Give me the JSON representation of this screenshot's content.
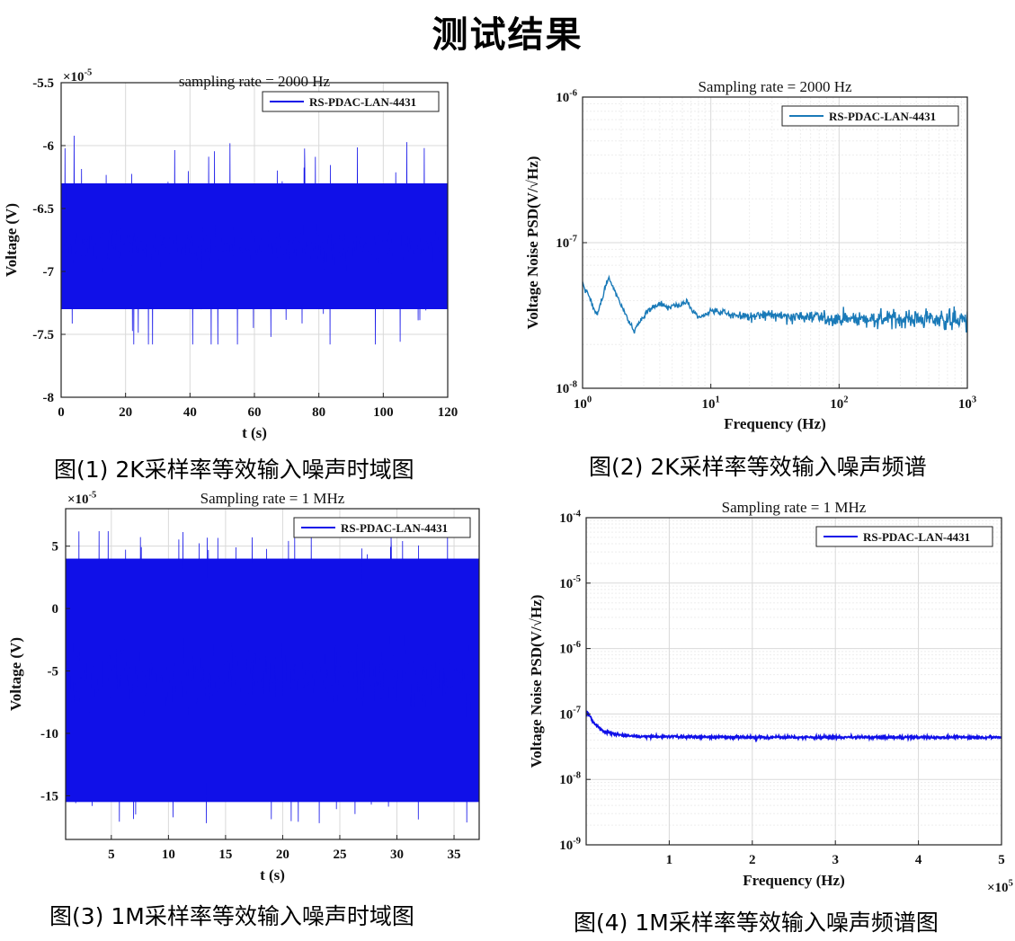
{
  "page": {
    "title": "测试结果"
  },
  "captions": [
    "图(1) 2K采样率等效输入噪声时域图",
    "图(2) 2K采样率等效输入噪声频谱",
    "图(3) 1M采样率等效输入噪声时域图",
    "图(4) 1M采样率等效输入噪声频谱图"
  ],
  "colors": {
    "blue": "#1010e8",
    "steel_blue": "#1a7ab8",
    "grid": "#d9d9d9",
    "axis": "#222222"
  },
  "chart_data": [
    {
      "type": "line",
      "title": "sampling rate = 2000 Hz",
      "xlabel": "t (s)",
      "ylabel": "Voltage (V)",
      "exponent_label": "×10",
      "exponent_sup": "-5",
      "xlim": [
        0,
        120
      ],
      "ylim": [
        -8,
        -5.5
      ],
      "xticks": [
        0,
        20,
        40,
        60,
        80,
        100,
        120
      ],
      "xtick_labels": [
        "0",
        "20",
        "40",
        "60",
        "80",
        "100",
        "120"
      ],
      "yticks": [
        -8,
        -7.5,
        -7,
        -6.5,
        -6,
        -5.5
      ],
      "ytick_labels": [
        "-8",
        "-7.5",
        "-7",
        "-6.5",
        "-6",
        "-5.5"
      ],
      "grid": true,
      "legend": "top-right",
      "series": [
        {
          "name": "RS-PDAC-LAN-4431",
          "color": "#1010e8",
          "mean": -6.8,
          "band": [
            -7.3,
            -6.3
          ],
          "peak_range": [
            -7.58,
            -5.9
          ]
        }
      ]
    },
    {
      "type": "line",
      "title": "Sampling rate = 2000 Hz",
      "xlabel": "Frequency (Hz)",
      "ylabel": "Voltage Noise PSD(V/√Hz)",
      "xscale": "log",
      "yscale": "log",
      "xlim": [
        1,
        1000
      ],
      "ylim": [
        1e-08,
        1e-06
      ],
      "xticks": [
        1,
        10,
        100,
        1000
      ],
      "xtick_base": "10",
      "xtick_exps": [
        "0",
        "1",
        "2",
        "3"
      ],
      "yticks": [
        1e-08,
        1e-07,
        1e-06
      ],
      "ytick_base": "10",
      "ytick_exps": [
        "-8",
        "-7",
        "-6"
      ],
      "grid": true,
      "legend": "top-right",
      "series": [
        {
          "name": "RS-PDAC-LAN-4431",
          "color": "#1a7ab8",
          "x": [
            1,
            1.3,
            1.6,
            2.0,
            2.5,
            3.2,
            4,
            5,
            6.5,
            8,
            10,
            15,
            20,
            30,
            50,
            100,
            200,
            500,
            1000
          ],
          "y": [
            5.2e-08,
            3.2e-08,
            5.8e-08,
            3.7e-08,
            2.5e-08,
            3.4e-08,
            3.8e-08,
            3.6e-08,
            3.9e-08,
            3e-08,
            3.4e-08,
            3.2e-08,
            3.1e-08,
            3.2e-08,
            3.1e-08,
            3e-08,
            3e-08,
            3e-08,
            2.9e-08
          ]
        }
      ]
    },
    {
      "type": "line",
      "title": "Sampling rate = 1 MHz",
      "xlabel": "t (s)",
      "ylabel": "Voltage (V)",
      "exponent_label": "×10",
      "exponent_sup": "-5",
      "xlim": [
        1,
        37.2
      ],
      "ylim": [
        -18.5,
        8
      ],
      "xticks": [
        5,
        10,
        15,
        20,
        25,
        30,
        35
      ],
      "xtick_labels": [
        "5",
        "10",
        "15",
        "20",
        "25",
        "30",
        "35"
      ],
      "yticks": [
        -15,
        -10,
        -5,
        0,
        5
      ],
      "ytick_labels": [
        "-15",
        "-10",
        "-5",
        "0",
        "5"
      ],
      "grid": true,
      "legend": "top-right",
      "series": [
        {
          "name": "RS-PDAC-LAN-4431",
          "color": "#1010e8",
          "mean": -5.5,
          "band": [
            -15.5,
            4.0
          ],
          "peak_range": [
            -17.2,
            6.2
          ]
        }
      ]
    },
    {
      "type": "line",
      "title": "Sampling rate = 1 MHz",
      "xlabel": "Frequency (Hz)",
      "ylabel": "Voltage Noise PSD(V/√Hz)",
      "yscale": "log",
      "x_exponent_label": "×10",
      "x_exponent_sup": "5",
      "xlim": [
        0,
        5
      ],
      "ylim": [
        1e-09,
        0.0001
      ],
      "xticks": [
        1,
        2,
        3,
        4,
        5
      ],
      "xtick_labels": [
        "1",
        "2",
        "3",
        "4",
        "5"
      ],
      "yticks": [
        1e-09,
        1e-08,
        1e-07,
        1e-06,
        1e-05,
        0.0001
      ],
      "ytick_base": "10",
      "ytick_exps": [
        "-9",
        "-8",
        "-7",
        "-6",
        "-5",
        "-4"
      ],
      "grid": true,
      "legend": "top-right",
      "series": [
        {
          "name": "RS-PDAC-LAN-4431",
          "color": "#1010e8",
          "x": [
            0.0,
            0.05,
            0.1,
            0.2,
            0.35,
            0.5,
            1,
            2,
            3,
            4,
            5
          ],
          "y": [
            1.1e-07,
            9e-08,
            7e-08,
            5.5e-08,
            4.9e-08,
            4.6e-08,
            4.5e-08,
            4.4e-08,
            4.4e-08,
            4.4e-08,
            4.4e-08
          ]
        }
      ]
    }
  ]
}
